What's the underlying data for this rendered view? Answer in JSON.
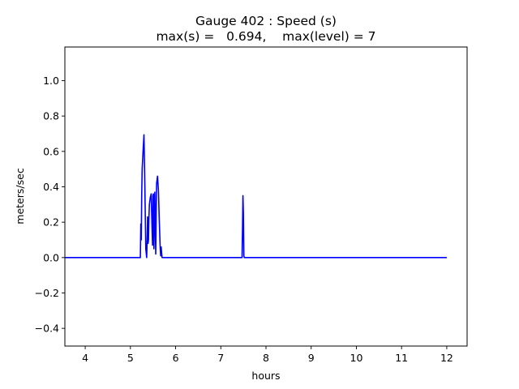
{
  "chart_data": {
    "type": "line",
    "title": "Gauge 402 : Speed (s)",
    "subtitle": "max(s) =   0.694,    max(level) = 7",
    "xlabel": "hours",
    "ylabel": "meters/sec",
    "xlim": [
      3.55,
      12.45
    ],
    "ylim": [
      -0.5,
      1.19
    ],
    "xticks": [
      4,
      5,
      6,
      7,
      8,
      9,
      10,
      11,
      12
    ],
    "yticks": [
      -0.4,
      -0.2,
      0.0,
      0.2,
      0.4,
      0.6,
      0.8,
      1.0
    ],
    "ytick_labels": [
      "−0.4",
      "−0.2",
      "0.0",
      "0.2",
      "0.4",
      "0.6",
      "0.8",
      "1.0"
    ],
    "grid": false,
    "colors": {
      "series": "#0000ff",
      "axes": "#000000",
      "background": "#ffffff"
    },
    "series": [
      {
        "color": "#0000ff",
        "x": [
          3.55,
          5.22,
          5.23,
          5.24,
          5.25,
          5.26,
          5.28,
          5.3,
          5.32,
          5.34,
          5.36,
          5.37,
          5.38,
          5.39,
          5.4,
          5.41,
          5.42,
          5.43,
          5.44,
          5.46,
          5.48,
          5.49,
          5.5,
          5.51,
          5.52,
          5.53,
          5.54,
          5.56,
          5.57,
          5.58,
          5.6,
          5.62,
          5.64,
          5.66,
          5.67,
          5.68,
          5.7,
          7.47,
          7.48,
          7.49,
          7.5,
          7.51,
          7.52,
          12.0
        ],
        "y": [
          0.0,
          0.0,
          0.19,
          0.1,
          0.35,
          0.5,
          0.6,
          0.694,
          0.4,
          0.05,
          0.0,
          0.1,
          0.23,
          0.08,
          0.1,
          0.23,
          0.3,
          0.32,
          0.34,
          0.36,
          0.15,
          0.07,
          0.35,
          0.36,
          0.05,
          0.2,
          0.37,
          0.02,
          0.25,
          0.42,
          0.46,
          0.38,
          0.2,
          0.05,
          0.01,
          0.06,
          0.0,
          0.0,
          0.15,
          0.35,
          0.25,
          0.01,
          0.0,
          0.0
        ]
      }
    ]
  }
}
